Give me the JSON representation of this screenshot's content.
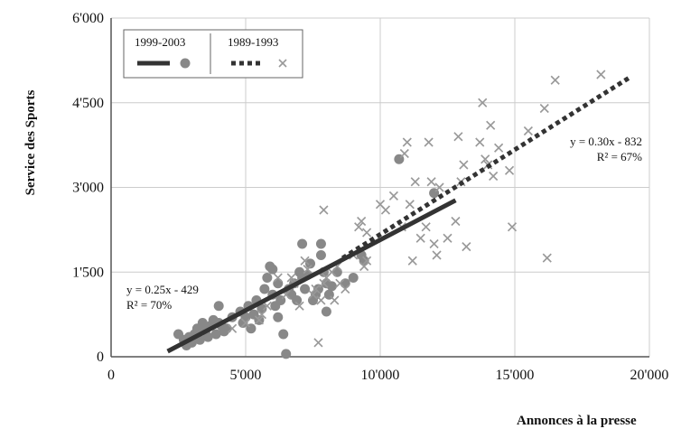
{
  "chart_data": {
    "type": "scatter",
    "title": "",
    "xlabel": "Annonces à la presse",
    "ylabel": "Service des Sports",
    "xlim": [
      0,
      20000
    ],
    "ylim": [
      0,
      6000
    ],
    "x_ticks": [
      0,
      5000,
      10000,
      15000,
      20000
    ],
    "x_tick_labels": [
      "0",
      "5'000",
      "10'000",
      "15'000",
      "20'000"
    ],
    "y_ticks": [
      0,
      1500,
      3000,
      4500,
      6000
    ],
    "y_tick_labels": [
      "0",
      "1'500",
      "3'000",
      "4'500",
      "6'000"
    ],
    "grid": true,
    "legend_position": "top-left",
    "series": [
      {
        "name": "1999-2003",
        "marker": "circle",
        "color": "#888888",
        "points": [
          [
            2500,
            400
          ],
          [
            2700,
            300
          ],
          [
            2800,
            200
          ],
          [
            2900,
            350
          ],
          [
            3000,
            250
          ],
          [
            3100,
            400
          ],
          [
            3200,
            500
          ],
          [
            3300,
            300
          ],
          [
            3400,
            600
          ],
          [
            3500,
            450
          ],
          [
            3600,
            350
          ],
          [
            3700,
            550
          ],
          [
            3800,
            650
          ],
          [
            3900,
            400
          ],
          [
            4000,
            600
          ],
          [
            4000,
            900
          ],
          [
            4100,
            550
          ],
          [
            4200,
            450
          ],
          [
            4300,
            500
          ],
          [
            4500,
            700
          ],
          [
            4800,
            800
          ],
          [
            4900,
            600
          ],
          [
            5000,
            700
          ],
          [
            5100,
            900
          ],
          [
            5200,
            500
          ],
          [
            5300,
            750
          ],
          [
            5400,
            1000
          ],
          [
            5500,
            650
          ],
          [
            5600,
            850
          ],
          [
            5700,
            1200
          ],
          [
            5800,
            1400
          ],
          [
            5900,
            1600
          ],
          [
            6000,
            1550
          ],
          [
            6000,
            1100
          ],
          [
            6100,
            900
          ],
          [
            6200,
            1300
          ],
          [
            6200,
            700
          ],
          [
            6300,
            1000
          ],
          [
            6400,
            400
          ],
          [
            6500,
            50
          ],
          [
            6600,
            1200
          ],
          [
            6700,
            1100
          ],
          [
            6800,
            1300
          ],
          [
            6900,
            1000
          ],
          [
            7000,
            1500
          ],
          [
            7100,
            1400
          ],
          [
            7100,
            2000
          ],
          [
            7200,
            1200
          ],
          [
            7300,
            1450
          ],
          [
            7400,
            1650
          ],
          [
            7500,
            1000
          ],
          [
            7600,
            1100
          ],
          [
            7700,
            1200
          ],
          [
            7800,
            1800
          ],
          [
            7800,
            2000
          ],
          [
            7900,
            1500
          ],
          [
            8000,
            1300
          ],
          [
            8000,
            800
          ],
          [
            8100,
            1100
          ],
          [
            8200,
            1250
          ],
          [
            8400,
            1500
          ],
          [
            8700,
            1300
          ],
          [
            9000,
            1400
          ],
          [
            9300,
            1800
          ],
          [
            9400,
            1700
          ],
          [
            10700,
            3500
          ],
          [
            12000,
            2900
          ]
        ],
        "trendline": {
          "x_range": [
            2100,
            12800
          ],
          "slope": 0.25,
          "intercept": -429,
          "style": "solid"
        },
        "annotation": {
          "equation": "y = 0.25x - 429",
          "r_squared": "R² = 70%"
        }
      },
      {
        "name": "1989-1993",
        "marker": "x",
        "color": "#999999",
        "points": [
          [
            4500,
            500
          ],
          [
            5000,
            600
          ],
          [
            5500,
            650
          ],
          [
            5600,
            750
          ],
          [
            5800,
            900
          ],
          [
            6200,
            1400
          ],
          [
            6500,
            1100
          ],
          [
            6700,
            1400
          ],
          [
            6800,
            1300
          ],
          [
            7000,
            900
          ],
          [
            7200,
            1700
          ],
          [
            7300,
            1550
          ],
          [
            7500,
            1100
          ],
          [
            7600,
            1200
          ],
          [
            7700,
            250
          ],
          [
            7800,
            1000
          ],
          [
            7900,
            1300
          ],
          [
            7900,
            2600
          ],
          [
            8000,
            1400
          ],
          [
            8200,
            1500
          ],
          [
            8300,
            1000
          ],
          [
            8400,
            1600
          ],
          [
            8500,
            1300
          ],
          [
            8700,
            1200
          ],
          [
            9000,
            1800
          ],
          [
            9200,
            2300
          ],
          [
            9300,
            2400
          ],
          [
            9400,
            1600
          ],
          [
            9500,
            1700
          ],
          [
            9500,
            2200
          ],
          [
            10000,
            2700
          ],
          [
            10200,
            2600
          ],
          [
            10500,
            2850
          ],
          [
            10800,
            2300
          ],
          [
            10900,
            3600
          ],
          [
            11000,
            3800
          ],
          [
            11100,
            2700
          ],
          [
            11200,
            1700
          ],
          [
            11300,
            3100
          ],
          [
            11500,
            2100
          ],
          [
            11700,
            2300
          ],
          [
            11800,
            3800
          ],
          [
            11900,
            3100
          ],
          [
            12000,
            2000
          ],
          [
            12100,
            1800
          ],
          [
            12200,
            3000
          ],
          [
            12500,
            2100
          ],
          [
            12800,
            2400
          ],
          [
            12900,
            3900
          ],
          [
            13000,
            3100
          ],
          [
            13100,
            3400
          ],
          [
            13200,
            1950
          ],
          [
            13700,
            3800
          ],
          [
            13800,
            4500
          ],
          [
            13900,
            3500
          ],
          [
            14000,
            3400
          ],
          [
            14100,
            4100
          ],
          [
            14200,
            3200
          ],
          [
            14400,
            3700
          ],
          [
            14800,
            3300
          ],
          [
            14900,
            2300
          ],
          [
            15500,
            4000
          ],
          [
            16100,
            4400
          ],
          [
            16200,
            1750
          ],
          [
            16500,
            4900
          ],
          [
            18200,
            5000
          ]
        ],
        "trendline": {
          "x_range": [
            8600,
            19300
          ],
          "slope": 0.3,
          "intercept": -832,
          "style": "dotted"
        },
        "annotation": {
          "equation": "y = 0.30x - 832",
          "r_squared": "R² = 67%"
        }
      }
    ]
  }
}
